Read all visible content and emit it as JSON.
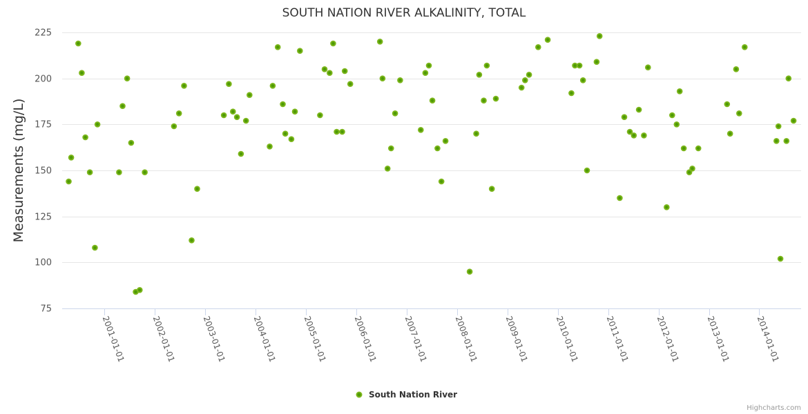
{
  "chart_data": {
    "type": "scatter",
    "title": "SOUTH NATION RIVER ALKALINITY, TOTAL",
    "xlabel": "",
    "ylabel": "Measurements (mg/L)",
    "x_type": "datetime (decimal year)",
    "xlim": [
      2000.16,
      2014.83
    ],
    "ylim": [
      75,
      225
    ],
    "y_ticks": [
      75,
      100,
      125,
      150,
      175,
      200,
      225
    ],
    "x_ticks": [
      {
        "value": 2001,
        "label": "2001-01-01"
      },
      {
        "value": 2002,
        "label": "2002-01-01"
      },
      {
        "value": 2003,
        "label": "2003-01-01"
      },
      {
        "value": 2004,
        "label": "2004-01-01"
      },
      {
        "value": 2005,
        "label": "2005-01-01"
      },
      {
        "value": 2006,
        "label": "2006-01-01"
      },
      {
        "value": 2007,
        "label": "2007-01-01"
      },
      {
        "value": 2008,
        "label": "2008-01-01"
      },
      {
        "value": 2009,
        "label": "2009-01-01"
      },
      {
        "value": 2010,
        "label": "2010-01-01"
      },
      {
        "value": 2011,
        "label": "2011-01-01"
      },
      {
        "value": 2012,
        "label": "2012-01-01"
      },
      {
        "value": 2013,
        "label": "2013-01-01"
      },
      {
        "value": 2014,
        "label": "2014-01-01"
      }
    ],
    "grid": true,
    "legend": "bottom-center",
    "series": [
      {
        "name": "South Nation River",
        "color": "#7cb61b",
        "center_color": "#4e9a06",
        "points": [
          [
            2000.29,
            144
          ],
          [
            2000.34,
            157
          ],
          [
            2000.48,
            219
          ],
          [
            2000.55,
            203
          ],
          [
            2000.62,
            168
          ],
          [
            2000.71,
            149
          ],
          [
            2000.81,
            108
          ],
          [
            2000.86,
            175
          ],
          [
            2001.29,
            149
          ],
          [
            2001.36,
            185
          ],
          [
            2001.45,
            200
          ],
          [
            2001.53,
            165
          ],
          [
            2001.62,
            84
          ],
          [
            2001.7,
            85
          ],
          [
            2001.8,
            149
          ],
          [
            2002.38,
            174
          ],
          [
            2002.48,
            181
          ],
          [
            2002.58,
            196
          ],
          [
            2002.73,
            112
          ],
          [
            2002.84,
            140
          ],
          [
            2003.37,
            180
          ],
          [
            2003.47,
            197
          ],
          [
            2003.55,
            182
          ],
          [
            2003.63,
            179
          ],
          [
            2003.71,
            159
          ],
          [
            2003.81,
            177
          ],
          [
            2003.88,
            191
          ],
          [
            2004.28,
            163
          ],
          [
            2004.34,
            196
          ],
          [
            2004.44,
            217
          ],
          [
            2004.54,
            186
          ],
          [
            2004.59,
            170
          ],
          [
            2004.71,
            167
          ],
          [
            2004.78,
            182
          ],
          [
            2004.88,
            215
          ],
          [
            2005.28,
            180
          ],
          [
            2005.37,
            205
          ],
          [
            2005.47,
            203
          ],
          [
            2005.54,
            219
          ],
          [
            2005.61,
            171
          ],
          [
            2005.72,
            171
          ],
          [
            2005.77,
            204
          ],
          [
            2005.88,
            197
          ],
          [
            2006.47,
            220
          ],
          [
            2006.52,
            200
          ],
          [
            2006.62,
            151
          ],
          [
            2006.69,
            162
          ],
          [
            2006.77,
            181
          ],
          [
            2006.87,
            199
          ],
          [
            2007.28,
            172
          ],
          [
            2007.37,
            203
          ],
          [
            2007.44,
            207
          ],
          [
            2007.51,
            188
          ],
          [
            2007.61,
            162
          ],
          [
            2007.69,
            144
          ],
          [
            2007.77,
            166
          ],
          [
            2008.25,
            95
          ],
          [
            2008.38,
            170
          ],
          [
            2008.44,
            202
          ],
          [
            2008.53,
            188
          ],
          [
            2008.59,
            207
          ],
          [
            2008.69,
            140
          ],
          [
            2008.77,
            189
          ],
          [
            2009.28,
            195
          ],
          [
            2009.35,
            199
          ],
          [
            2009.43,
            202
          ],
          [
            2009.61,
            217
          ],
          [
            2009.8,
            221
          ],
          [
            2010.27,
            192
          ],
          [
            2010.34,
            207
          ],
          [
            2010.43,
            207
          ],
          [
            2010.5,
            199
          ],
          [
            2010.58,
            150
          ],
          [
            2010.77,
            209
          ],
          [
            2010.83,
            223
          ],
          [
            2011.23,
            135
          ],
          [
            2011.32,
            179
          ],
          [
            2011.43,
            171
          ],
          [
            2011.51,
            169
          ],
          [
            2011.61,
            183
          ],
          [
            2011.71,
            169
          ],
          [
            2011.79,
            206
          ],
          [
            2012.16,
            130
          ],
          [
            2012.27,
            180
          ],
          [
            2012.36,
            175
          ],
          [
            2012.42,
            193
          ],
          [
            2012.5,
            162
          ],
          [
            2012.61,
            149
          ],
          [
            2012.67,
            151
          ],
          [
            2012.79,
            162
          ],
          [
            2013.36,
            186
          ],
          [
            2013.42,
            170
          ],
          [
            2013.54,
            205
          ],
          [
            2013.6,
            181
          ],
          [
            2013.71,
            217
          ],
          [
            2014.34,
            166
          ],
          [
            2014.38,
            174
          ],
          [
            2014.42,
            102
          ],
          [
            2014.54,
            166
          ],
          [
            2014.58,
            200
          ],
          [
            2014.68,
            177
          ]
        ]
      }
    ]
  },
  "credits": "Highcharts.com"
}
